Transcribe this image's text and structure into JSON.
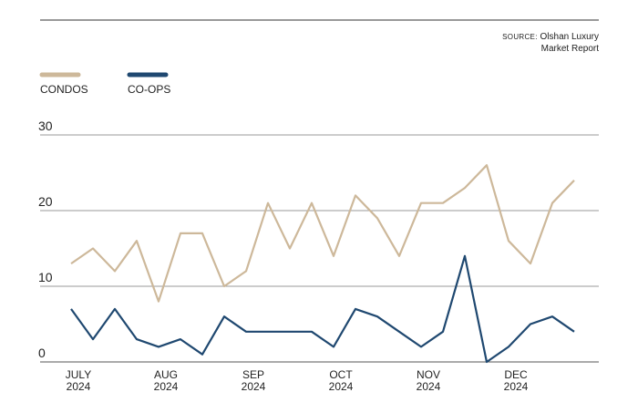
{
  "chart_data": {
    "type": "line",
    "source_label": "SOURCE:",
    "source": "Olshan Luxury Market Report",
    "categories": [
      "JULY 2024",
      null,
      null,
      null,
      "AUG 2024",
      null,
      null,
      null,
      "SEP 2024",
      null,
      null,
      null,
      "OCT 2024",
      null,
      null,
      null,
      "NOV 2024",
      null,
      null,
      null,
      "DEC 2024",
      null,
      null,
      null
    ],
    "series": [
      {
        "name": "CONDOS",
        "color": "#cdb89a",
        "values": [
          13,
          15,
          12,
          16,
          8,
          17,
          17,
          10,
          12,
          21,
          15,
          21,
          14,
          22,
          19,
          14,
          21,
          21,
          23,
          26,
          16,
          13,
          21,
          24
        ]
      },
      {
        "name": "CO-OPS",
        "color": "#1f4870",
        "values": [
          7,
          3,
          7,
          3,
          2,
          3,
          1,
          6,
          4,
          4,
          4,
          4,
          2,
          7,
          6,
          4,
          2,
          4,
          14,
          0,
          2,
          5,
          6,
          4
        ]
      }
    ],
    "ylim": [
      0,
      30
    ],
    "yticks": [
      0,
      10,
      20,
      30
    ],
    "grid": true
  }
}
